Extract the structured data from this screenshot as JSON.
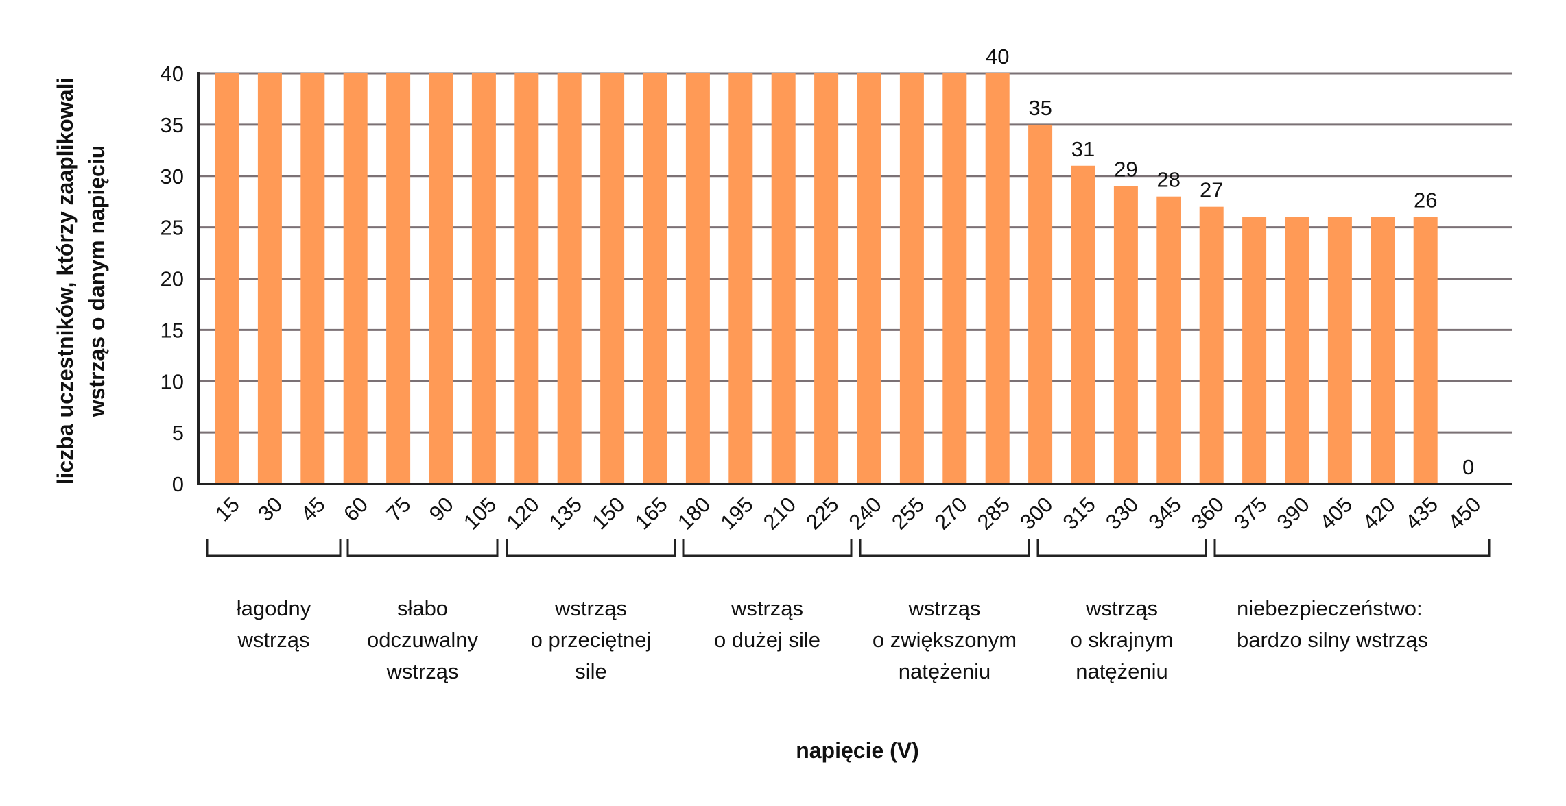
{
  "chart_data": {
    "type": "bar",
    "xlabel": "napięcie (V)",
    "ylabel_lines": [
      "liczba uczestników, którzy zaaplikowali",
      "wstrząs o danym napięciu"
    ],
    "ylim": [
      0,
      40
    ],
    "yticks": [
      0,
      5,
      10,
      15,
      20,
      25,
      30,
      35,
      40
    ],
    "grid": true,
    "categories": [
      "15",
      "30",
      "45",
      "60",
      "75",
      "90",
      "105",
      "120",
      "135",
      "150",
      "165",
      "180",
      "195",
      "210",
      "225",
      "240",
      "255",
      "270",
      "285",
      "300",
      "315",
      "330",
      "345",
      "360",
      "375",
      "390",
      "405",
      "420",
      "435",
      "450"
    ],
    "values": [
      40,
      40,
      40,
      40,
      40,
      40,
      40,
      40,
      40,
      40,
      40,
      40,
      40,
      40,
      40,
      40,
      40,
      40,
      40,
      35,
      31,
      29,
      28,
      27,
      26,
      26,
      26,
      26,
      26,
      0
    ],
    "data_labels": {
      "285": "40",
      "300": "35",
      "315": "31",
      "330": "29",
      "345": "28",
      "360": "27",
      "435": "26",
      "450": "0"
    },
    "groups": [
      {
        "lines": [
          "łagodny",
          "wstrząs"
        ],
        "from": "15",
        "to": "60"
      },
      {
        "lines": [
          "słabo",
          "odczuwalny",
          "wstrząs"
        ],
        "from": "75",
        "to": "120"
      },
      {
        "lines": [
          "wstrząs",
          "o przeciętnej",
          "sile"
        ],
        "from": "135",
        "to": "180"
      },
      {
        "lines": [
          "wstrząs",
          "o dużej sile"
        ],
        "from": "195",
        "to": "240"
      },
      {
        "lines": [
          "wstrząs",
          "o zwiększonym",
          "natężeniu"
        ],
        "from": "255",
        "to": "300"
      },
      {
        "lines": [
          "wstrząs",
          "o skrajnym",
          "natężeniu"
        ],
        "from": "315",
        "to": "360"
      },
      {
        "lines": [
          "niebezpieczeństwo:",
          "bardzo silny wstrząs"
        ],
        "from": "375",
        "to": "450"
      }
    ],
    "colors": {
      "bar": "#FF9A56",
      "grid": "#7B7175",
      "axis": "#222222"
    }
  }
}
